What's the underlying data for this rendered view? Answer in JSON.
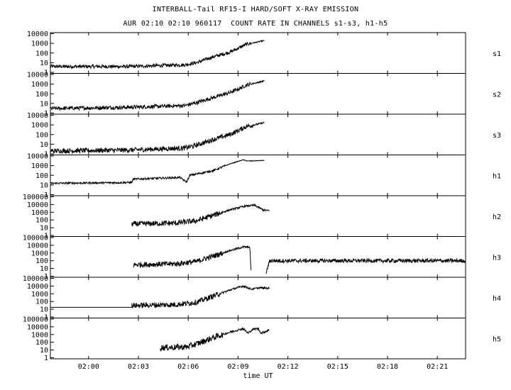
{
  "title": "INTERBALL-Tail RF15-I HARD/SOFT X-RAY EMISSION",
  "subtitle": "AUR 02:10 02:10 960117  COUNT RATE IN CHANNELS s1-s3, h1-h5",
  "chart_data": {
    "type": "line",
    "xlabel": "time UT",
    "x_unit": "minutes after 02:00 UT",
    "xlim": [
      -2.3,
      22.7
    ],
    "x_ticks": [
      {
        "value": 0,
        "label": "02:00"
      },
      {
        "value": 3,
        "label": "02:03"
      },
      {
        "value": 6,
        "label": "02:06"
      },
      {
        "value": 9,
        "label": "02:09"
      },
      {
        "value": 12,
        "label": "02:12"
      },
      {
        "value": 15,
        "label": "02:15"
      },
      {
        "value": 18,
        "label": "02:18"
      },
      {
        "value": 21,
        "label": "02:21"
      }
    ],
    "y_scale": "log",
    "panels": [
      {
        "name": "s1",
        "ylim": [
          1,
          10000
        ],
        "y_ticks": [
          10000,
          1000,
          100,
          10,
          1
        ],
        "y_tick_labels": [
          "10000",
          "1000",
          "100",
          "10",
          "1"
        ],
        "noise": 0.18,
        "points": [
          [
            -2.3,
            4
          ],
          [
            2.5,
            4
          ],
          [
            5.8,
            6
          ],
          [
            6.5,
            10
          ],
          [
            7.5,
            40
          ],
          [
            8.5,
            120
          ],
          [
            9.0,
            300
          ],
          [
            9.5,
            800
          ],
          [
            10.2,
            1400
          ],
          [
            10.6,
            2000
          ]
        ]
      },
      {
        "name": "s2",
        "ylim": [
          1,
          10000
        ],
        "y_ticks": [
          10000,
          1000,
          100,
          10,
          1
        ],
        "y_tick_labels": [
          "10000",
          "1000",
          "100",
          "10",
          "1"
        ],
        "noise": 0.2,
        "points": [
          [
            -2.3,
            3
          ],
          [
            2.5,
            4
          ],
          [
            5.8,
            6
          ],
          [
            6.5,
            12
          ],
          [
            7.5,
            40
          ],
          [
            8.5,
            130
          ],
          [
            9.0,
            300
          ],
          [
            9.5,
            800
          ],
          [
            10.2,
            1500
          ],
          [
            10.6,
            2200
          ]
        ]
      },
      {
        "name": "s3",
        "ylim": [
          1,
          10000
        ],
        "y_ticks": [
          10000,
          1000,
          100,
          10,
          1
        ],
        "y_tick_labels": [
          "10000",
          "1000",
          "100",
          "10",
          "1"
        ],
        "noise": 0.25,
        "points": [
          [
            -2.3,
            2
          ],
          [
            2.5,
            2.5
          ],
          [
            5.8,
            4
          ],
          [
            6.5,
            8
          ],
          [
            7.5,
            30
          ],
          [
            8.5,
            100
          ],
          [
            9.0,
            250
          ],
          [
            9.5,
            700
          ],
          [
            10.2,
            1200
          ],
          [
            10.6,
            1800
          ]
        ]
      },
      {
        "name": "h1",
        "ylim": [
          1,
          10000
        ],
        "y_ticks": [
          10000,
          1000,
          100,
          10,
          1
        ],
        "y_tick_labels": [
          "10000",
          "1000",
          "100",
          "10",
          "1"
        ],
        "noise": 0.1,
        "points": [
          [
            -2.3,
            15
          ],
          [
            2.6,
            18
          ],
          [
            2.7,
            40
          ],
          [
            5.5,
            60
          ],
          [
            5.9,
            20
          ],
          [
            6.1,
            100
          ],
          [
            7.5,
            300
          ],
          [
            8.5,
            1500
          ],
          [
            9.3,
            4000
          ],
          [
            9.6,
            3000
          ],
          [
            10.6,
            3500
          ]
        ]
      },
      {
        "name": "h2",
        "ylim": [
          1,
          100000
        ],
        "y_ticks": [
          100000,
          10000,
          1000,
          100,
          10,
          1
        ],
        "y_tick_labels": [
          "100000",
          "10000",
          "1000",
          "100",
          "10",
          "1"
        ],
        "noise": 0.35,
        "points": [
          [
            2.6,
            30
          ],
          [
            5.3,
            40
          ],
          [
            6.5,
            80
          ],
          [
            7.5,
            400
          ],
          [
            8.5,
            2000
          ],
          [
            9.4,
            6000
          ],
          [
            10.0,
            8000
          ],
          [
            10.5,
            2000
          ],
          [
            10.9,
            1500
          ]
        ]
      },
      {
        "name": "h3",
        "ylim": [
          1,
          100000
        ],
        "y_ticks": [
          100000,
          10000,
          1000,
          100,
          10,
          1
        ],
        "y_tick_labels": [
          "100000",
          "10000",
          "1000",
          "100",
          "10",
          "1"
        ],
        "noise": 0.35,
        "points": [
          [
            2.7,
            30
          ],
          [
            5.3,
            40
          ],
          [
            6.5,
            80
          ],
          [
            7.5,
            400
          ],
          [
            8.5,
            2000
          ],
          [
            9.3,
            6000
          ],
          [
            9.7,
            6000
          ],
          [
            9.8,
            2
          ]
        ],
        "segments": [
          {
            "noise": 0.25,
            "points": [
              [
                10.7,
                3
              ],
              [
                10.9,
                100
              ],
              [
                22.7,
                100
              ]
            ]
          }
        ]
      },
      {
        "name": "h4",
        "ylim": [
          1,
          100000
        ],
        "y_ticks": [
          100000,
          10000,
          1000,
          100,
          10,
          1
        ],
        "y_tick_labels": [
          "100000",
          "10000",
          "1000",
          "100",
          "10",
          "1"
        ],
        "noise": 0.35,
        "flat_pre": {
          "x": [
            -2.3,
            2.6
          ],
          "value": 18
        },
        "points": [
          [
            2.6,
            30
          ],
          [
            5.3,
            40
          ],
          [
            6.5,
            80
          ],
          [
            7.5,
            500
          ],
          [
            8.5,
            3000
          ],
          [
            9.3,
            10000
          ],
          [
            9.8,
            4000
          ],
          [
            10.3,
            6000
          ],
          [
            10.9,
            5000
          ]
        ]
      },
      {
        "name": "h5",
        "ylim": [
          1,
          100000
        ],
        "y_ticks": [
          100000,
          10000,
          1000,
          100,
          10,
          1
        ],
        "y_tick_labels": [
          "100000",
          "10000",
          "1000",
          "100",
          "10",
          "1"
        ],
        "noise": 0.4,
        "points": [
          [
            4.3,
            20
          ],
          [
            5.9,
            25
          ],
          [
            6.5,
            60
          ],
          [
            7.5,
            400
          ],
          [
            8.5,
            2000
          ],
          [
            9.3,
            6000
          ],
          [
            9.6,
            1500
          ],
          [
            9.9,
            5000
          ],
          [
            10.2,
            6000
          ],
          [
            10.4,
            1500
          ],
          [
            10.9,
            4000
          ]
        ]
      }
    ]
  }
}
